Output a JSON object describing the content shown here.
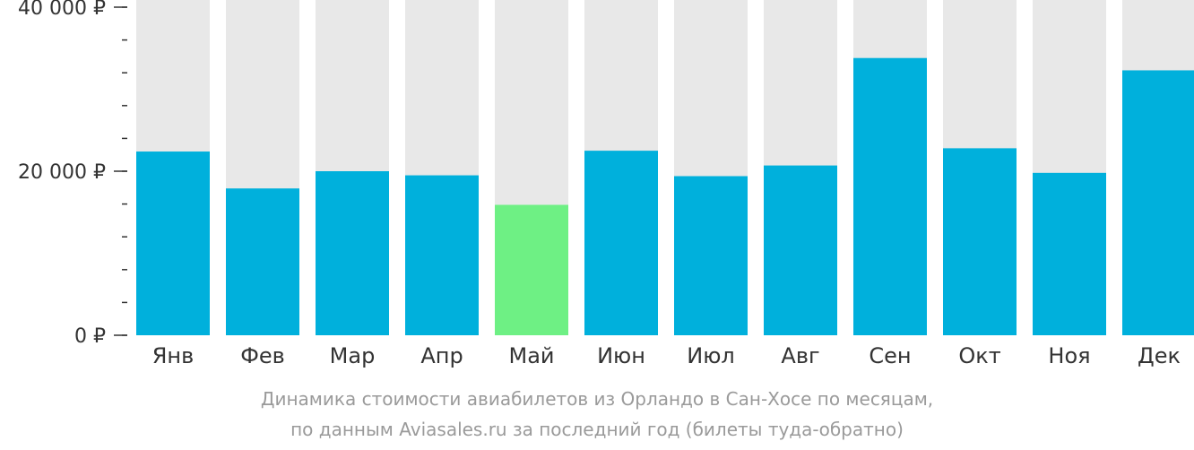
{
  "chart_data": {
    "type": "bar",
    "categories": [
      "Янв",
      "Фев",
      "Мар",
      "Апр",
      "Май",
      "Июн",
      "Июл",
      "Авг",
      "Сен",
      "Окт",
      "Ноя",
      "Дек"
    ],
    "values": [
      22400,
      17900,
      20000,
      19500,
      15900,
      22500,
      19400,
      20700,
      33800,
      22800,
      19800,
      32300
    ],
    "ylim": [
      0,
      40000
    ],
    "y_ticks": [
      {
        "value": 0,
        "label": "0 ₽"
      },
      {
        "value": 20000,
        "label": "20 000 ₽"
      },
      {
        "value": 40000,
        "label": "40 000 ₽"
      }
    ],
    "minor_tick_step": 4000,
    "highlight_index": 4,
    "colors": {
      "bar": "#00b0dc",
      "highlight": "#6ef084",
      "background_bar": "#e8e8e8",
      "axis_text": "#333333"
    },
    "caption_line1": "Динамика стоимости авиабилетов из Орландо в Сан-Хосе по месяцам,",
    "caption_line2": "по данным Aviasales.ru за последний год (билеты туда-обратно)"
  }
}
